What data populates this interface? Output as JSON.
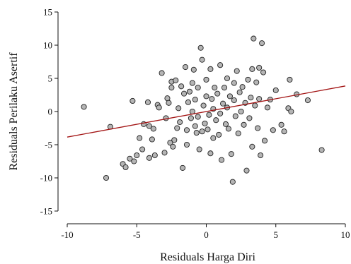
{
  "chart_data": {
    "type": "scatter",
    "xlabel": "Residuals Harga Diri",
    "ylabel": "Residuals Perilaku Asertif",
    "xlim": [
      -10,
      10
    ],
    "ylim": [
      -15,
      15
    ],
    "xticks": [
      -10,
      -5,
      0,
      5,
      10
    ],
    "yticks": [
      -15,
      -10,
      -5,
      0,
      5,
      10,
      15
    ],
    "xtick_labels": [
      "-10",
      "-5",
      "0",
      "5",
      "10"
    ],
    "ytick_labels": [
      "-15",
      "-10",
      "-5",
      "0",
      "5",
      "10",
      "15"
    ],
    "grid": false,
    "colors": {
      "point_fill": "#b5b5b5",
      "point_stroke": "#222222",
      "regression_line": "#a31515"
    },
    "regression_line": {
      "x": [
        -10,
        10
      ],
      "y": [
        -3.85,
        3.85
      ]
    },
    "points": [
      {
        "x": -8.8,
        "y": 0.7
      },
      {
        "x": -7.2,
        "y": -10.0
      },
      {
        "x": -6.9,
        "y": -2.3
      },
      {
        "x": -6.0,
        "y": -7.9
      },
      {
        "x": -5.8,
        "y": -8.4
      },
      {
        "x": -5.5,
        "y": -7.1
      },
      {
        "x": -5.3,
        "y": 1.6
      },
      {
        "x": -5.2,
        "y": -7.5
      },
      {
        "x": -5.0,
        "y": -6.6
      },
      {
        "x": -4.8,
        "y": -4.0
      },
      {
        "x": -4.6,
        "y": -5.7
      },
      {
        "x": -4.5,
        "y": -1.9
      },
      {
        "x": -4.2,
        "y": 1.4
      },
      {
        "x": -4.1,
        "y": -7.0
      },
      {
        "x": -4.1,
        "y": -2.2
      },
      {
        "x": -3.8,
        "y": -2.6
      },
      {
        "x": -3.9,
        "y": -4.2
      },
      {
        "x": -3.7,
        "y": -6.6
      },
      {
        "x": -3.5,
        "y": 1.0
      },
      {
        "x": -3.4,
        "y": 0.6
      },
      {
        "x": -3.2,
        "y": 5.8
      },
      {
        "x": -3.0,
        "y": -6.2
      },
      {
        "x": -2.9,
        "y": -1.0
      },
      {
        "x": -2.8,
        "y": 2.0
      },
      {
        "x": -2.7,
        "y": 1.3
      },
      {
        "x": -2.6,
        "y": -4.7
      },
      {
        "x": -2.5,
        "y": 3.6
      },
      {
        "x": -2.5,
        "y": 4.5
      },
      {
        "x": -2.4,
        "y": -5.3
      },
      {
        "x": -2.3,
        "y": -4.3
      },
      {
        "x": -2.2,
        "y": 4.7
      },
      {
        "x": -2.1,
        "y": -2.5
      },
      {
        "x": -2.0,
        "y": 0.5
      },
      {
        "x": -1.9,
        "y": -1.6
      },
      {
        "x": -1.8,
        "y": 3.8
      },
      {
        "x": -1.7,
        "y": -8.5
      },
      {
        "x": -1.6,
        "y": 2.7
      },
      {
        "x": -1.5,
        "y": 6.7
      },
      {
        "x": -1.4,
        "y": -5.0
      },
      {
        "x": -1.4,
        "y": -2.8
      },
      {
        "x": -1.3,
        "y": 1.4
      },
      {
        "x": -1.2,
        "y": 3.0
      },
      {
        "x": -1.1,
        "y": -1.0
      },
      {
        "x": -1.0,
        "y": 0.0
      },
      {
        "x": -1.0,
        "y": 4.3
      },
      {
        "x": -0.9,
        "y": 6.3
      },
      {
        "x": -0.8,
        "y": -2.2
      },
      {
        "x": -0.8,
        "y": 1.8
      },
      {
        "x": -0.7,
        "y": -3.2
      },
      {
        "x": -0.6,
        "y": 3.6
      },
      {
        "x": -0.6,
        "y": -0.8
      },
      {
        "x": -0.5,
        "y": -5.7
      },
      {
        "x": -0.4,
        "y": 9.6
      },
      {
        "x": -0.3,
        "y": 7.8
      },
      {
        "x": -0.3,
        "y": -3.0
      },
      {
        "x": -0.2,
        "y": 0.9
      },
      {
        "x": -0.1,
        "y": -1.8
      },
      {
        "x": 0.0,
        "y": 4.8
      },
      {
        "x": 0.0,
        "y": 2.3
      },
      {
        "x": 0.1,
        "y": -2.7
      },
      {
        "x": 0.2,
        "y": -0.5
      },
      {
        "x": 0.3,
        "y": 6.4
      },
      {
        "x": 0.3,
        "y": -6.3
      },
      {
        "x": 0.4,
        "y": 1.9
      },
      {
        "x": 0.5,
        "y": -4.0
      },
      {
        "x": 0.5,
        "y": 0.4
      },
      {
        "x": 0.6,
        "y": 3.6
      },
      {
        "x": 0.7,
        "y": -1.3
      },
      {
        "x": 0.8,
        "y": 2.7
      },
      {
        "x": 0.9,
        "y": -3.5
      },
      {
        "x": 1.0,
        "y": 7.0
      },
      {
        "x": 1.0,
        "y": -0.3
      },
      {
        "x": 1.1,
        "y": -7.3
      },
      {
        "x": 1.2,
        "y": 1.2
      },
      {
        "x": 1.3,
        "y": 3.6
      },
      {
        "x": 1.4,
        "y": -1.9
      },
      {
        "x": 1.5,
        "y": 0.6
      },
      {
        "x": 1.5,
        "y": 5.0
      },
      {
        "x": 1.6,
        "y": -2.6
      },
      {
        "x": 1.7,
        "y": 2.3
      },
      {
        "x": 1.8,
        "y": -6.4
      },
      {
        "x": 1.9,
        "y": -10.6
      },
      {
        "x": 2.0,
        "y": 4.3
      },
      {
        "x": 2.0,
        "y": 1.7
      },
      {
        "x": 2.1,
        "y": -0.7
      },
      {
        "x": 2.2,
        "y": 6.1
      },
      {
        "x": 2.3,
        "y": -3.3
      },
      {
        "x": 2.4,
        "y": 2.9
      },
      {
        "x": 2.5,
        "y": 0.0
      },
      {
        "x": 2.6,
        "y": 3.7
      },
      {
        "x": 2.7,
        "y": -2.0
      },
      {
        "x": 2.8,
        "y": 1.3
      },
      {
        "x": 2.9,
        "y": -8.9
      },
      {
        "x": 3.0,
        "y": 4.8
      },
      {
        "x": 3.1,
        "y": -1.0
      },
      {
        "x": 3.2,
        "y": 2.1
      },
      {
        "x": 3.3,
        "y": 6.4
      },
      {
        "x": 3.3,
        "y": -5.3
      },
      {
        "x": 3.4,
        "y": 11.0
      },
      {
        "x": 3.5,
        "y": 0.9
      },
      {
        "x": 3.6,
        "y": 4.4
      },
      {
        "x": 3.7,
        "y": -2.5
      },
      {
        "x": 3.8,
        "y": 1.9
      },
      {
        "x": 3.8,
        "y": 6.6
      },
      {
        "x": 3.9,
        "y": -6.6
      },
      {
        "x": 4.0,
        "y": 10.3
      },
      {
        "x": 4.1,
        "y": 5.9
      },
      {
        "x": 4.2,
        "y": -4.4
      },
      {
        "x": 4.4,
        "y": 0.6
      },
      {
        "x": 4.6,
        "y": 1.8
      },
      {
        "x": 4.8,
        "y": -2.8
      },
      {
        "x": 5.0,
        "y": 3.2
      },
      {
        "x": 5.4,
        "y": -2.0
      },
      {
        "x": 5.6,
        "y": -3.0
      },
      {
        "x": 5.9,
        "y": 0.5
      },
      {
        "x": 6.0,
        "y": 4.8
      },
      {
        "x": 6.1,
        "y": 0.0
      },
      {
        "x": 7.3,
        "y": 1.7
      },
      {
        "x": 8.3,
        "y": -5.8
      },
      {
        "x": 6.5,
        "y": 2.6
      }
    ]
  }
}
